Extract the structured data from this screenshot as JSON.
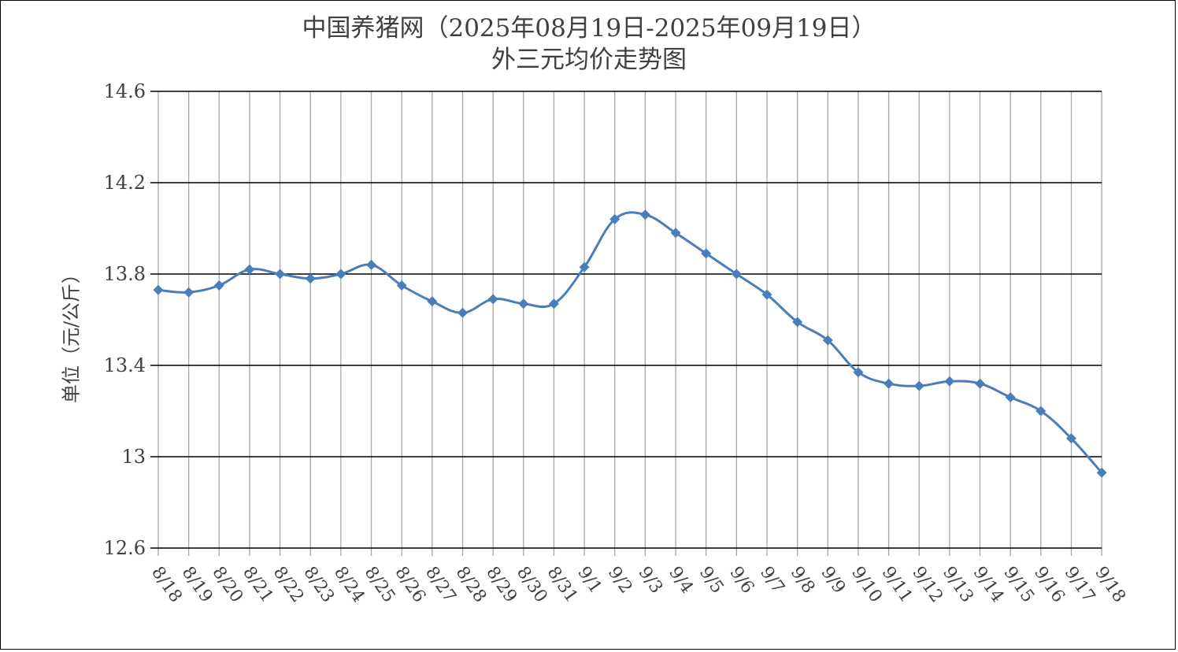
{
  "chart_data": {
    "type": "line",
    "title_line1": "中国养猪网（2025年08月19日-2025年09月19日）",
    "title_line2": "外三元均价走势图",
    "xlabel": "",
    "ylabel": "单位（元/公斤）",
    "ylim": [
      12.6,
      14.6
    ],
    "yticks": [
      "14.6",
      "14.2",
      "13.8",
      "13.4",
      "13",
      "12.6"
    ],
    "ytick_values": [
      14.6,
      14.2,
      13.8,
      13.4,
      13.0,
      12.6
    ],
    "grid": "both",
    "categories": [
      "8/18",
      "8/19",
      "8/20",
      "8/21",
      "8/22",
      "8/23",
      "8/24",
      "8/25",
      "8/26",
      "8/27",
      "8/28",
      "8/29",
      "8/30",
      "8/31",
      "9/1",
      "9/2",
      "9/3",
      "9/4",
      "9/5",
      "9/6",
      "9/7",
      "9/8",
      "9/9",
      "9/10",
      "9/11",
      "9/12",
      "9/13",
      "9/14",
      "9/15",
      "9/16",
      "9/17",
      "9/18"
    ],
    "values": [
      13.73,
      13.72,
      13.75,
      13.82,
      13.8,
      13.78,
      13.8,
      13.84,
      13.75,
      13.68,
      13.63,
      13.69,
      13.67,
      13.67,
      13.83,
      14.04,
      14.06,
      13.98,
      13.89,
      13.8,
      13.71,
      13.59,
      13.51,
      13.37,
      13.32,
      13.31,
      13.33,
      13.32,
      13.26,
      13.2,
      13.08,
      12.93
    ],
    "line_color": "#4a7ebb",
    "grid_color_h": "#000000",
    "grid_color_v": "#a6a6a6"
  }
}
